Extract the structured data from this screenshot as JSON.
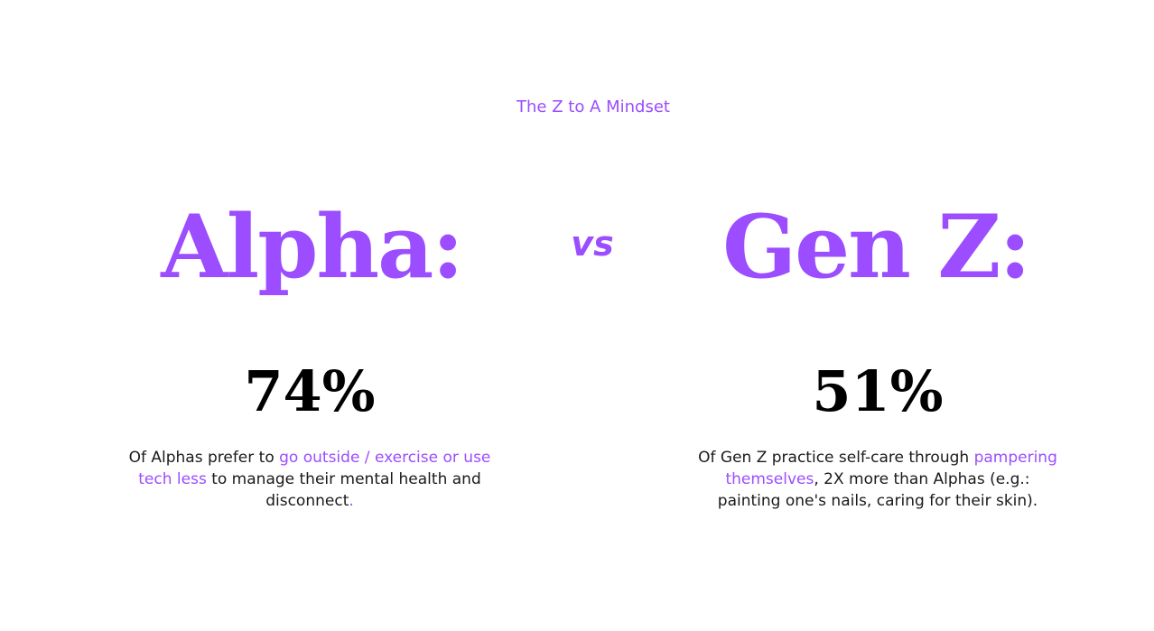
{
  "header": {
    "eyebrow": "The Z to A Mindset"
  },
  "comparison": {
    "vs_label": "vs",
    "left": {
      "heading": "Alpha:",
      "stat": "74%",
      "description": {
        "part1": "Of Alphas prefer to ",
        "highlight": "go outside / exercise or use tech less",
        "part2": " to manage their mental health and disconnect",
        "end": "."
      }
    },
    "right": {
      "heading": "Gen Z:",
      "stat": "51%",
      "description": {
        "part1": "Of Gen Z practice self-care through ",
        "highlight": "pampering themselves",
        "part2": ", 2X more than Alphas (e.g.: painting one's nails, caring for their skin)."
      }
    }
  },
  "colors": {
    "accent": "#9b4dff",
    "text": "#1a1a1a",
    "stat": "#000000",
    "background": "#ffffff"
  }
}
